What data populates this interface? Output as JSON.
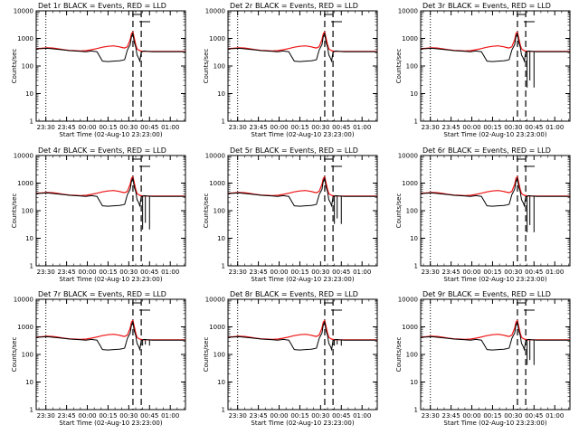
{
  "chart_data": {
    "type": "line",
    "layout": "3x3 grid",
    "legend_text": "BLACK = Events, RED = LLD",
    "xlabel": "Start Time (02-Aug-10 23:23:00)",
    "ylabel": "Counts/sec",
    "xticks": [
      "23:30",
      "23:45",
      "00:00",
      "00:15",
      "00:30",
      "00:45",
      "01:00"
    ],
    "xlim_minutes_after_start": [
      0,
      108
    ],
    "xtick_minutes_after_start": [
      7,
      22,
      37,
      52,
      67,
      82,
      97
    ],
    "yscale": "log",
    "ylim": [
      1,
      10000
    ],
    "yticks": [
      "1",
      "10",
      "100",
      "1000",
      "10000"
    ],
    "vertical_dotted_line_minutes": 7,
    "vertical_dashed_lines_minutes": [
      70,
      76
    ],
    "panels": [
      {
        "title": "Det 1r",
        "black_dropout_depth": 0.0
      },
      {
        "title": "Det 2r",
        "black_dropout_depth": 0.0
      },
      {
        "title": "Det 3r",
        "black_dropout_depth": 1.3
      },
      {
        "title": "Det 4r",
        "black_dropout_depth": 1.2
      },
      {
        "title": "Det 5r",
        "black_dropout_depth": 1.0
      },
      {
        "title": "Det 6r",
        "black_dropout_depth": 1.3
      },
      {
        "title": "Det 7r",
        "black_dropout_depth": 0.2
      },
      {
        "title": "Det 8r",
        "black_dropout_depth": 0.2
      },
      {
        "title": "Det 9r",
        "black_dropout_depth": 0.9
      }
    ],
    "series": [
      {
        "name": "Events",
        "color": "#000000",
        "x_minutes": [
          0,
          4,
          8,
          12,
          16,
          20,
          24,
          28,
          32,
          36,
          40,
          44,
          48,
          52,
          56,
          60,
          62,
          64,
          66,
          68,
          69,
          70,
          71,
          72,
          73,
          74,
          75,
          76,
          78,
          80,
          84,
          88,
          92,
          96,
          100,
          104,
          108
        ],
        "values": [
          420,
          430,
          440,
          420,
          400,
          380,
          360,
          350,
          340,
          330,
          350,
          330,
          150,
          145,
          150,
          155,
          160,
          170,
          380,
          600,
          1200,
          1500,
          700,
          500,
          250,
          200,
          150,
          320,
          350,
          340,
          330,
          330,
          330,
          330,
          330,
          330,
          330
        ]
      },
      {
        "name": "LLD",
        "color": "#ee1111",
        "x_minutes": [
          0,
          4,
          8,
          12,
          16,
          20,
          24,
          28,
          32,
          36,
          40,
          44,
          48,
          52,
          56,
          60,
          62,
          64,
          66,
          68,
          69,
          70,
          71,
          72,
          73,
          74,
          75,
          76,
          78,
          80,
          84,
          88,
          92,
          96,
          100,
          104,
          108
        ],
        "values": [
          430,
          440,
          460,
          450,
          420,
          390,
          370,
          360,
          350,
          360,
          390,
          430,
          480,
          520,
          540,
          500,
          470,
          450,
          500,
          900,
          1500,
          1700,
          1000,
          600,
          420,
          380,
          360,
          350,
          340,
          340,
          340,
          340,
          340,
          340,
          340,
          340,
          340
        ]
      }
    ]
  }
}
